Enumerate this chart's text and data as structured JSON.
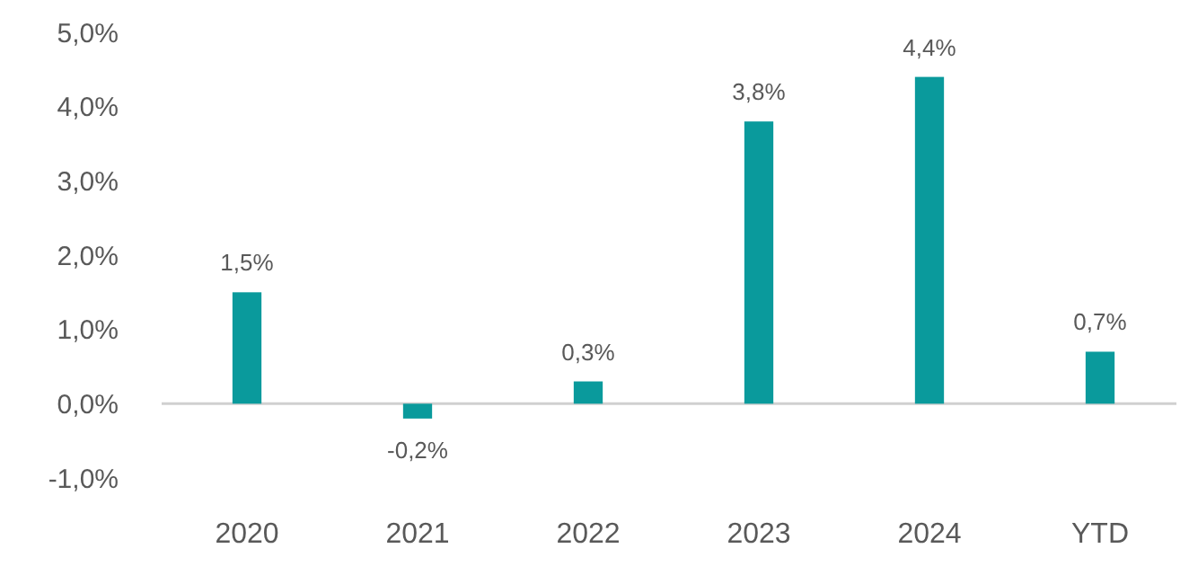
{
  "chart_data": {
    "type": "bar",
    "categories": [
      "2020",
      "2021",
      "2022",
      "2023",
      "2024",
      "YTD"
    ],
    "values": [
      1.5,
      -0.2,
      0.3,
      3.8,
      4.4,
      0.7
    ],
    "value_labels": [
      "1,5%",
      "-0,2%",
      "0,3%",
      "3,8%",
      "4,4%",
      "0,7%"
    ],
    "color": "#0a9a9c",
    "ylim": [
      -1,
      5
    ],
    "yticks": [
      {
        "value": -1,
        "label": "-1,0%"
      },
      {
        "value": 0,
        "label": "0,0%"
      },
      {
        "value": 1,
        "label": "1,0%"
      },
      {
        "value": 2,
        "label": "2,0%"
      },
      {
        "value": 3,
        "label": "3,0%"
      },
      {
        "value": 4,
        "label": "4,0%"
      },
      {
        "value": 5,
        "label": "5,0%"
      }
    ],
    "ref_lines": [
      {
        "axis": "y",
        "value": 0,
        "color": "#d0d0d0"
      }
    ]
  }
}
